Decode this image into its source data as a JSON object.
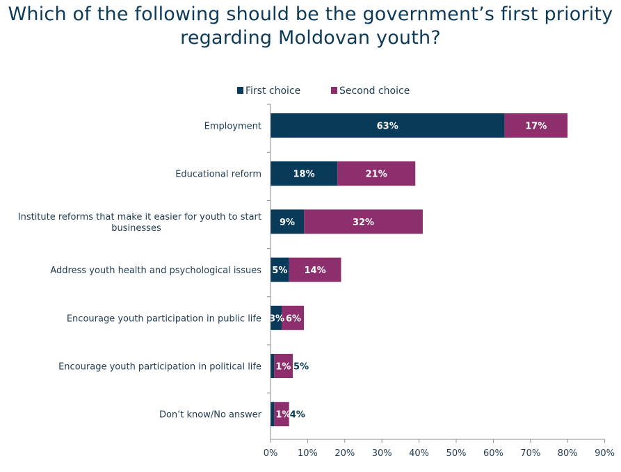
{
  "title_lines": [
    "Which of the following should be the government’s first priority",
    "regarding Moldovan youth?"
  ],
  "colors": {
    "first_choice": "#083a59",
    "second_choice": "#8c2f6c",
    "text": "#1f3b52",
    "axis": "#8c8c8c"
  },
  "chart_data": {
    "type": "bar",
    "orientation": "horizontal",
    "stacked": true,
    "title": "Which of the following should be the government’s first priority regarding Moldovan youth?",
    "categories": [
      [
        "Employment"
      ],
      [
        "Educational reform"
      ],
      [
        "Institute reforms that make it easier for youth to start",
        "businesses"
      ],
      [
        "Address youth health and psychological issues"
      ],
      [
        "Encourage youth participation in public life"
      ],
      [
        "Encourage youth participation in political life"
      ],
      [
        "Don’t know/No answer"
      ]
    ],
    "series": [
      {
        "name": "First choice",
        "values": [
          63,
          18,
          9,
          5,
          3,
          1,
          1
        ],
        "labels": [
          "63%",
          "18%",
          "9%",
          "5%",
          "3%",
          "1%",
          "1%"
        ]
      },
      {
        "name": "Second choice",
        "values": [
          17,
          21,
          32,
          14,
          6,
          5,
          4
        ],
        "labels": [
          "17%",
          "21%",
          "32%",
          "14%",
          "6%",
          "5%",
          "4%"
        ]
      }
    ],
    "xlim": [
      0,
      90
    ],
    "x_ticks": [
      "0%",
      "10%",
      "20%",
      "30%",
      "40%",
      "50%",
      "60%",
      "70%",
      "80%",
      "90%"
    ],
    "legend": "top",
    "grid": false
  }
}
